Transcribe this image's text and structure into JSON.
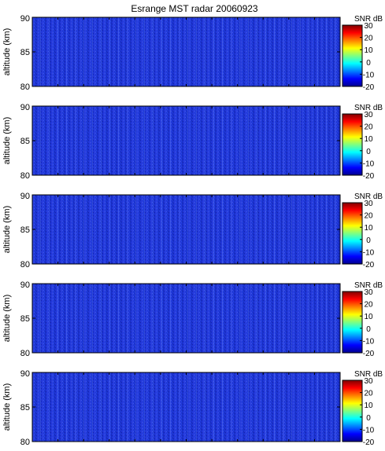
{
  "title": "Esrange MST radar 20060923",
  "colors": {
    "field_base": "#1f36d8",
    "frame": "#000000",
    "colormap": [
      "#00008f",
      "#0000ff",
      "#0080ff",
      "#00ffff",
      "#80ff80",
      "#ffff00",
      "#ff8000",
      "#ff0000",
      "#800000"
    ]
  },
  "chart_data": [
    {
      "type": "heatmap",
      "ylabel": "altitude (km)",
      "ylim": [
        80,
        90
      ],
      "yticks": [
        "90",
        "85",
        "80"
      ],
      "colorbar": {
        "label": "SNR dB",
        "range": [
          -20,
          30
        ],
        "ticks": [
          "30",
          "20",
          "10",
          "0",
          "-10",
          "-20"
        ]
      },
      "field_level_dB": -12
    },
    {
      "type": "heatmap",
      "ylabel": "altitude (km)",
      "ylim": [
        80,
        90
      ],
      "yticks": [
        "90",
        "85",
        "80"
      ],
      "colorbar": {
        "label": "SNR dB",
        "range": [
          -20,
          30
        ],
        "ticks": [
          "30",
          "20",
          "10",
          "0",
          "-10",
          "-20"
        ]
      },
      "field_level_dB": -12
    },
    {
      "type": "heatmap",
      "ylabel": "altitude (km)",
      "ylim": [
        80,
        90
      ],
      "yticks": [
        "90",
        "85",
        "80"
      ],
      "colorbar": {
        "label": "SNR dB",
        "range": [
          -20,
          30
        ],
        "ticks": [
          "30",
          "20",
          "10",
          "0",
          "-10",
          "-20"
        ]
      },
      "field_level_dB": -12
    },
    {
      "type": "heatmap",
      "ylabel": "altitude (km)",
      "ylim": [
        80,
        90
      ],
      "yticks": [
        "90",
        "85",
        "80"
      ],
      "colorbar": {
        "label": "SNR dB",
        "range": [
          -20,
          30
        ],
        "ticks": [
          "30",
          "20",
          "10",
          "0",
          "-10",
          "-20"
        ]
      },
      "field_level_dB": -12
    },
    {
      "type": "heatmap",
      "ylabel": "altitude (km)",
      "ylim": [
        80,
        90
      ],
      "yticks": [
        "90",
        "85",
        "80"
      ],
      "colorbar": {
        "label": "SNR dB",
        "range": [
          -20,
          30
        ],
        "ticks": [
          "30",
          "20",
          "10",
          "0",
          "-10",
          "-20"
        ]
      },
      "field_level_dB": -12
    }
  ]
}
